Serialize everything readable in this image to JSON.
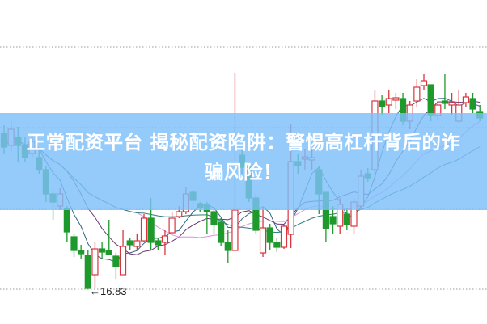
{
  "banner": {
    "line1": "正常配资平台 揭秘配资陷阱：警惕高杠杆背后的诈",
    "line2": "骗风险！"
  },
  "chart_data": {
    "type": "candlestick",
    "ohlc_order": [
      "open",
      "high",
      "low",
      "close"
    ],
    "up_color": "#d8353f",
    "down_color": "#1e9a2c",
    "moving_average_colors": [
      "#2f6283",
      "#6b3a70",
      "#e38ee3",
      "#2c7d7a"
    ],
    "grid": "dotted horizontal",
    "annotation": {
      "label": "←16.83",
      "value": 16.83
    },
    "candles": [
      [
        18.75,
        18.85,
        18.5,
        18.58
      ],
      [
        18.6,
        18.9,
        18.52,
        18.8
      ],
      [
        18.7,
        18.83,
        18.4,
        18.6
      ],
      [
        18.6,
        18.7,
        18.4,
        18.45
      ],
      [
        18.5,
        18.75,
        18.45,
        18.65
      ],
      [
        18.45,
        18.55,
        18.25,
        18.3
      ],
      [
        18.3,
        18.35,
        17.9,
        18.0
      ],
      [
        18.0,
        18.05,
        17.68,
        17.9
      ],
      [
        17.85,
        18.07,
        17.8,
        18.0
      ],
      [
        17.82,
        17.85,
        17.4,
        17.53
      ],
      [
        17.47,
        17.5,
        17.22,
        17.3
      ],
      [
        17.3,
        17.37,
        17.2,
        17.26
      ],
      [
        17.24,
        17.3,
        16.83,
        16.83
      ],
      [
        17.0,
        17.4,
        16.84,
        17.32
      ],
      [
        17.32,
        17.4,
        17.2,
        17.28
      ],
      [
        17.3,
        17.68,
        17.24,
        17.25
      ],
      [
        17.23,
        17.27,
        16.95,
        17.1
      ],
      [
        17.0,
        17.55,
        17.0,
        17.35
      ],
      [
        17.42,
        17.45,
        17.3,
        17.37
      ],
      [
        17.35,
        17.5,
        17.3,
        17.42
      ],
      [
        17.42,
        17.75,
        17.4,
        17.7
      ],
      [
        17.7,
        17.95,
        17.3,
        17.4
      ],
      [
        17.42,
        17.45,
        17.3,
        17.37
      ],
      [
        17.4,
        17.55,
        17.25,
        17.48
      ],
      [
        17.52,
        17.77,
        17.5,
        17.7
      ],
      [
        17.72,
        17.85,
        17.7,
        17.78
      ],
      [
        17.78,
        18.08,
        17.75,
        18.0
      ],
      [
        18.02,
        18.05,
        17.88,
        17.92
      ],
      [
        17.88,
        17.9,
        17.78,
        17.83
      ],
      [
        17.87,
        17.9,
        17.5,
        17.78
      ],
      [
        17.78,
        17.82,
        17.5,
        17.62
      ],
      [
        17.65,
        17.7,
        17.35,
        17.4
      ],
      [
        17.4,
        17.55,
        17.15,
        17.3
      ],
      [
        17.3,
        19.5,
        17.3,
        17.8
      ],
      [
        18.48,
        18.55,
        18.25,
        18.33
      ],
      [
        18.33,
        18.4,
        17.9,
        17.95
      ],
      [
        17.95,
        18.0,
        17.5,
        17.55
      ],
      [
        17.27,
        17.82,
        17.22,
        17.58
      ],
      [
        17.58,
        17.63,
        17.3,
        17.4
      ],
      [
        17.4,
        17.45,
        17.28,
        17.34
      ],
      [
        17.34,
        17.62,
        17.32,
        17.6
      ],
      [
        17.5,
        18.87,
        17.33,
        18.4
      ],
      [
        18.4,
        18.5,
        18.25,
        18.35
      ],
      [
        18.43,
        18.55,
        18.3,
        18.46
      ],
      [
        18.42,
        18.55,
        18.3,
        18.45
      ],
      [
        18.3,
        18.35,
        17.75,
        18.0
      ],
      [
        18.02,
        18.02,
        17.4,
        17.57
      ],
      [
        17.72,
        17.85,
        17.5,
        17.63
      ],
      [
        17.6,
        17.95,
        17.5,
        17.87
      ],
      [
        17.75,
        17.82,
        17.55,
        17.62
      ],
      [
        17.6,
        17.95,
        17.5,
        17.9
      ],
      [
        17.85,
        18.3,
        17.8,
        18.22
      ],
      [
        18.25,
        18.32,
        18.15,
        18.2
      ],
      [
        18.3,
        19.28,
        18.15,
        19.15
      ],
      [
        19.15,
        19.22,
        18.98,
        19.08
      ],
      [
        19.1,
        19.28,
        19.0,
        19.18
      ],
      [
        19.16,
        19.25,
        19.05,
        19.19
      ],
      [
        19.18,
        19.25,
        18.85,
        18.9
      ],
      [
        18.9,
        19.15,
        18.8,
        19.1
      ],
      [
        19.15,
        19.42,
        19.08,
        19.32
      ],
      [
        19.34,
        19.48,
        19.28,
        19.4
      ],
      [
        19.35,
        19.35,
        18.9,
        18.98
      ],
      [
        18.97,
        19.15,
        18.92,
        19.1
      ],
      [
        19.15,
        19.48,
        19.05,
        19.12
      ],
      [
        19.1,
        19.25,
        18.98,
        19.13
      ],
      [
        18.9,
        19.28,
        18.88,
        19.1
      ],
      [
        19.13,
        19.25,
        19.08,
        19.2
      ],
      [
        19.18,
        19.25,
        19.0,
        19.05
      ],
      [
        19.02,
        19.1,
        18.9,
        18.94
      ]
    ]
  }
}
